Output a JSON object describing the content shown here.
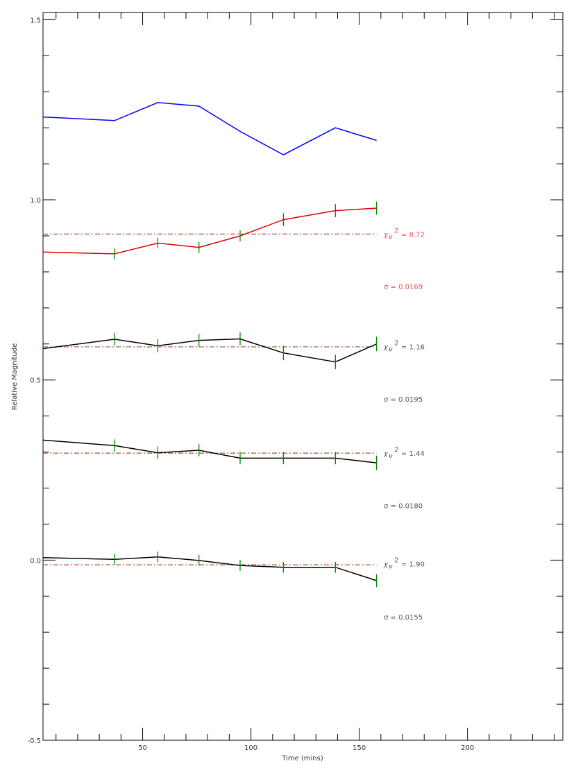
{
  "chart_data": {
    "type": "line",
    "xlabel": "Time (mins)",
    "ylabel": "Relative Magnitude",
    "xlim": [
      4,
      244
    ],
    "ylim": [
      -0.5,
      1.52
    ],
    "xticks": [
      50,
      100,
      150,
      200
    ],
    "xtick_labels": [
      "50",
      "100",
      "150",
      "200"
    ],
    "xminor_step": 10,
    "yticks": [
      -0.5,
      0.0,
      0.5,
      1.0,
      1.5
    ],
    "ytick_labels": [
      "-0.5",
      "0.0",
      "0.5",
      "1.0",
      "1.5"
    ],
    "yminor_step": 0.1,
    "grid": false,
    "colors": {
      "blue": "#0000ff",
      "red": "#e00000",
      "black": "#000000",
      "error": "#008800",
      "ref": "#b05030",
      "red_text": "#e05050",
      "gray_text": "#555555"
    },
    "series": [
      {
        "color": "blue",
        "x": [
          4,
          37,
          57,
          76,
          95,
          115,
          139,
          158
        ],
        "y": [
          1.23,
          1.22,
          1.27,
          1.26,
          1.19,
          1.125,
          1.2,
          1.165
        ],
        "errors": []
      },
      {
        "color": "red",
        "x": [
          4,
          37,
          57,
          76,
          95,
          115,
          139,
          158
        ],
        "y": [
          0.855,
          0.85,
          0.88,
          0.868,
          0.9,
          0.945,
          0.97,
          0.977
        ],
        "errors": [
          0,
          0.015,
          0.015,
          0.015,
          0.015,
          0.018,
          0.018,
          0.018
        ],
        "ref_level": 0.905,
        "chi_label": "χ",
        "chi_sub": "ν",
        "chi_sup": "2",
        "chi_value": "= 8.72",
        "chi_y": 0.905,
        "sigma_label": "σ = 0.0169",
        "sigma_y": 0.76,
        "text_color": "red_text"
      },
      {
        "color": "black",
        "x": [
          4,
          37,
          57,
          76,
          95,
          115,
          139,
          158
        ],
        "y": [
          0.587,
          0.613,
          0.595,
          0.61,
          0.614,
          0.575,
          0.55,
          0.6
        ],
        "errors": [
          0,
          0.018,
          0.018,
          0.018,
          0.018,
          0.02,
          0.02,
          0.02
        ],
        "ref_level": 0.592,
        "chi_label": "χ",
        "chi_sub": "ν",
        "chi_sup": "2",
        "chi_value": "= 1.16",
        "chi_y": 0.593,
        "sigma_label": "σ = 0.0195",
        "sigma_y": 0.447,
        "text_color": "gray_text"
      },
      {
        "color": "black",
        "x": [
          4,
          37,
          57,
          76,
          95,
          115,
          139,
          158
        ],
        "y": [
          0.333,
          0.318,
          0.298,
          0.305,
          0.283,
          0.283,
          0.283,
          0.27
        ],
        "errors": [
          0,
          0.017,
          0.017,
          0.017,
          0.017,
          0.017,
          0.017,
          0.02
        ],
        "ref_level": 0.297,
        "chi_label": "χ",
        "chi_sub": "ν",
        "chi_sup": "2",
        "chi_value": "= 1.44",
        "chi_y": 0.297,
        "sigma_label": "σ = 0.0180",
        "sigma_y": 0.152,
        "text_color": "gray_text"
      },
      {
        "color": "black",
        "x": [
          4,
          37,
          57,
          76,
          95,
          115,
          139,
          158
        ],
        "y": [
          0.007,
          0.002,
          0.009,
          -0.001,
          -0.015,
          -0.02,
          -0.02,
          -0.057
        ],
        "errors": [
          0,
          0.015,
          0.015,
          0.015,
          0.015,
          0.015,
          0.015,
          0.018
        ],
        "ref_level": -0.013,
        "chi_label": "χ",
        "chi_sub": "ν",
        "chi_sup": "2",
        "chi_value": "= 1.90",
        "chi_y": -0.01,
        "sigma_label": "σ = 0.0155",
        "sigma_y": -0.157,
        "text_color": "gray_text"
      }
    ]
  }
}
